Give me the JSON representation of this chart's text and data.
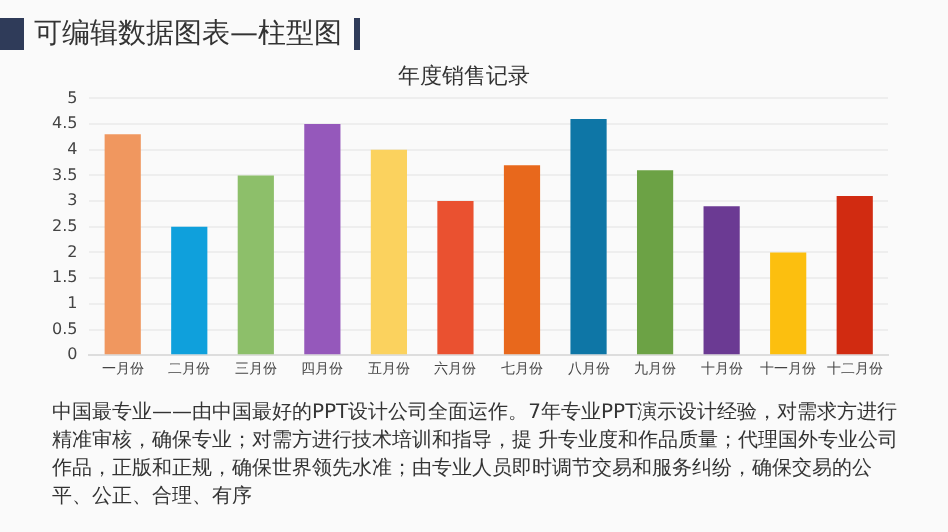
{
  "chart_data": {
    "type": "bar",
    "title": "可编辑数据图表—柱型图",
    "subtitle": "年度销售记录",
    "categories": [
      "一月份",
      "二月份",
      "三月份",
      "四月份",
      "五月份",
      "六月份",
      "七月份",
      "八月份",
      "九月份",
      "十月份",
      "十一月份",
      "十二月份"
    ],
    "values": [
      4.3,
      2.5,
      3.5,
      4.5,
      4.0,
      3.0,
      3.7,
      4.6,
      3.6,
      2.9,
      2.0,
      3.1
    ],
    "colors": [
      "#f0975f",
      "#0fa0dc",
      "#8dbf6a",
      "#9558bb",
      "#fbd25e",
      "#ea5130",
      "#e8681c",
      "#0e76a6",
      "#6ca245",
      "#6b3a93",
      "#fcbf0f",
      "#d12b11"
    ],
    "ylim": [
      0,
      5
    ],
    "yticks": [
      0,
      0.5,
      1,
      1.5,
      2,
      2.5,
      3,
      3.5,
      4,
      4.5,
      5
    ],
    "grid": "y",
    "annotations": [
      "中国最专业——由中国最好的PPT设计公司全面运作。7年专业PPT演示设计经验，对需求方进行精准审核，确保专业；对需方进行技术培训和指导，提 升专业度和作品质量；代理国外专业公司作品，正版和正规，确保世界领先水准；由专业人员即时调节交易和服务纠纷，确保交易的公平、公正、合理、有序"
    ]
  }
}
